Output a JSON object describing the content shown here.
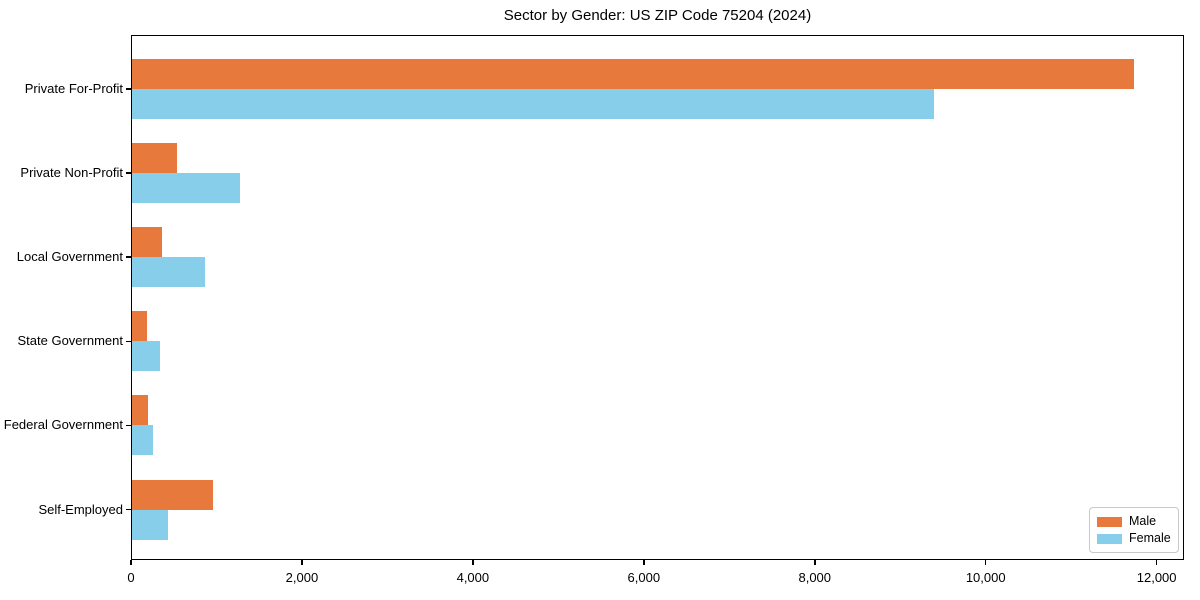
{
  "title": "Sector by Gender: US ZIP Code 75204 (2024)",
  "chart_data": {
    "type": "bar",
    "orientation": "horizontal",
    "title": "Sector by Gender: US ZIP Code 75204 (2024)",
    "categories": [
      "Private For-Profit",
      "Private Non-Profit",
      "Local Government",
      "State Government",
      "Federal Government",
      "Self-Employed"
    ],
    "series": [
      {
        "name": "Male",
        "color": "#E8793D",
        "values": [
          11740,
          535,
          360,
          190,
          200,
          960
        ]
      },
      {
        "name": "Female",
        "color": "#87CEEB",
        "values": [
          9390,
          1270,
          865,
          340,
          260,
          435
        ]
      }
    ],
    "xlabel": "",
    "ylabel": "",
    "xlim": [
      0,
      12320
    ],
    "xticks": [
      0,
      2000,
      4000,
      6000,
      8000,
      10000,
      12000
    ],
    "xtick_labels": [
      "0",
      "2,000",
      "4,000",
      "6,000",
      "8,000",
      "10,000",
      "12,000"
    ],
    "grid": false,
    "legend_position": "lower right",
    "background_color": "#ffffff",
    "axis_color": "#000000"
  }
}
